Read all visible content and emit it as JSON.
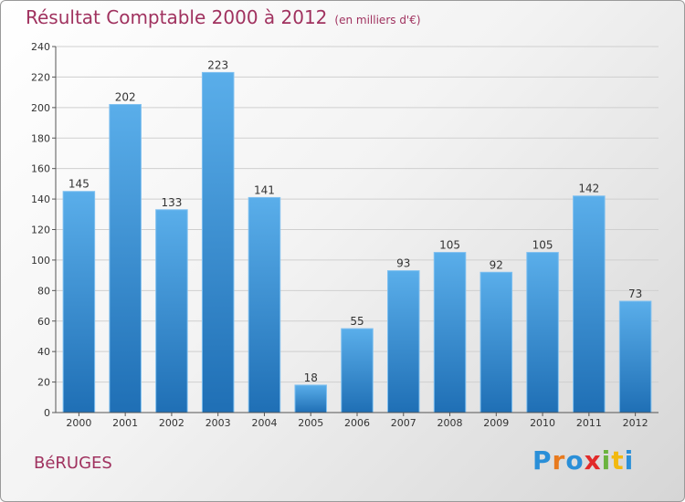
{
  "header": {
    "title": "Résultat Comptable 2000 à 2012",
    "subtitle": "(en milliers d'€)"
  },
  "footer": {
    "commune": "BéRUGES",
    "logo_letters": [
      "P",
      "r",
      "o",
      "x",
      "i",
      "t",
      "i"
    ],
    "logo_colors": [
      "#2a8fd8",
      "#e87a1e",
      "#2a8fd8",
      "#e22a2a",
      "#6cb33e",
      "#f2b90f",
      "#2a8fd8"
    ]
  },
  "colors": {
    "bar_top": "#5aaeea",
    "bar_bottom": "#1f6fb5",
    "grid": "#cfcfcf",
    "title": "#a0325f"
  },
  "chart_data": {
    "type": "bar",
    "title": "Résultat Comptable 2000 à 2012",
    "subtitle": "(en milliers d'€)",
    "categories": [
      "2000",
      "2001",
      "2002",
      "2003",
      "2004",
      "2005",
      "2006",
      "2007",
      "2008",
      "2009",
      "2010",
      "2011",
      "2012"
    ],
    "values": [
      145,
      202,
      133,
      223,
      141,
      18,
      55,
      93,
      105,
      92,
      105,
      142,
      73
    ],
    "ylim": [
      0,
      240
    ],
    "yticks": [
      0,
      20,
      40,
      60,
      80,
      100,
      120,
      140,
      160,
      180,
      200,
      220,
      240
    ],
    "grid": true,
    "legend": "none"
  }
}
